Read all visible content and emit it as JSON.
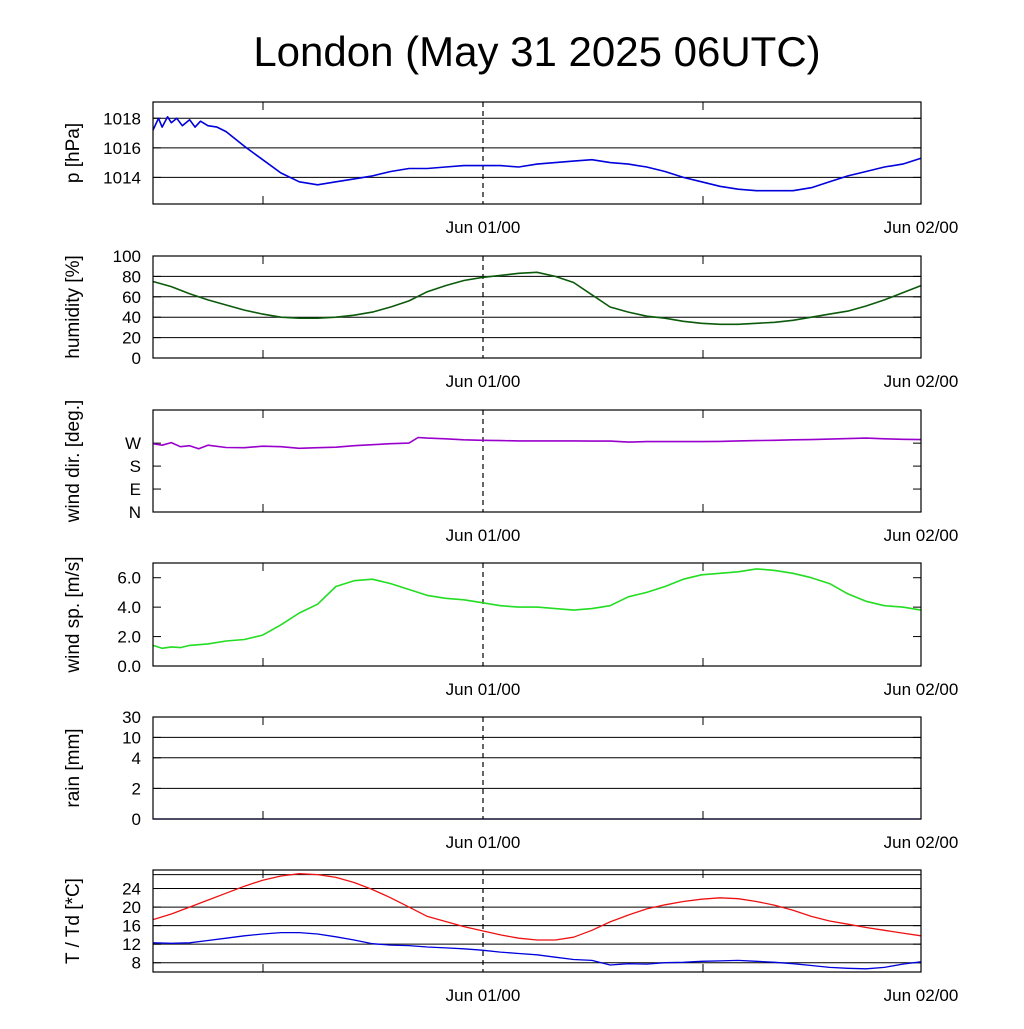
{
  "title": "London (May 31 2025 06UTC)",
  "x_tick_labels": [
    "Jun 01/00",
    "Jun 02/00"
  ],
  "chart_data": [
    {
      "type": "line",
      "ylabel": "p [hPa]",
      "ylim": [
        1012.2,
        1019.1
      ],
      "x_range_hours": [
        0,
        42
      ],
      "yticks": [
        1014,
        1016,
        1018
      ],
      "ytick_labels": [
        "1014",
        "1016",
        "1018"
      ],
      "grid_y": [
        1014,
        1016,
        1018
      ],
      "series": [
        {
          "color": "#0000dd",
          "x": [
            0,
            0.3,
            0.5,
            0.8,
            1,
            1.3,
            1.6,
            2,
            2.3,
            2.6,
            3,
            3.5,
            4,
            5,
            6,
            7,
            8,
            9,
            10,
            11,
            12,
            13,
            14,
            15,
            16,
            17,
            18,
            19,
            20,
            21,
            22,
            23,
            24,
            25,
            26,
            27,
            28,
            29,
            30,
            31,
            32,
            33,
            34,
            35,
            36,
            37,
            38,
            39,
            40,
            41,
            42
          ],
          "y": [
            1017.2,
            1018.0,
            1017.4,
            1018.1,
            1017.7,
            1018.0,
            1017.5,
            1017.9,
            1017.4,
            1017.8,
            1017.5,
            1017.4,
            1017.1,
            1016.1,
            1015.2,
            1014.3,
            1013.7,
            1013.5,
            1013.7,
            1013.9,
            1014.1,
            1014.4,
            1014.6,
            1014.6,
            1014.7,
            1014.8,
            1014.8,
            1014.8,
            1014.7,
            1014.9,
            1015.0,
            1015.1,
            1015.2,
            1015.0,
            1014.9,
            1014.7,
            1014.4,
            1014.0,
            1013.7,
            1013.4,
            1013.2,
            1013.1,
            1013.1,
            1013.1,
            1013.3,
            1013.7,
            1014.1,
            1014.4,
            1014.7,
            1014.9,
            1015.3
          ]
        }
      ]
    },
    {
      "type": "line",
      "ylabel": "humidity [%]",
      "ylim": [
        0,
        100
      ],
      "x_range_hours": [
        0,
        42
      ],
      "yticks": [
        0,
        20,
        40,
        60,
        80,
        100
      ],
      "ytick_labels": [
        "0",
        "20",
        "40",
        "60",
        "80",
        "100"
      ],
      "grid_y": [
        20,
        40,
        60,
        80
      ],
      "series": [
        {
          "color": "#0b5a0b",
          "x": [
            0,
            1,
            2,
            3,
            4,
            5,
            6,
            7,
            8,
            9,
            10,
            11,
            12,
            13,
            14,
            15,
            16,
            17,
            18,
            19,
            20,
            21,
            22,
            23,
            24,
            25,
            26,
            27,
            28,
            29,
            30,
            31,
            32,
            33,
            34,
            35,
            36,
            37,
            38,
            39,
            40,
            41,
            42
          ],
          "y": [
            75,
            70,
            63,
            57,
            52,
            47,
            43,
            40,
            39,
            39,
            40,
            42,
            45,
            50,
            56,
            65,
            71,
            76,
            79,
            81,
            83,
            84,
            80,
            74,
            62,
            50,
            45,
            41,
            39,
            36,
            34,
            33,
            33,
            34,
            35,
            37,
            40,
            43,
            46,
            51,
            57,
            64,
            71
          ]
        }
      ]
    },
    {
      "type": "line",
      "ylabel": "wind dir. [deg.]",
      "ylim": [
        0,
        400
      ],
      "x_range_hours": [
        0,
        42
      ],
      "yticks": [
        0,
        90,
        180,
        270
      ],
      "ytick_labels": [
        "N",
        "E",
        "S",
        "W"
      ],
      "grid_y": [],
      "series": [
        {
          "color": "#9900cc",
          "x": [
            0,
            0.5,
            1,
            1.5,
            2,
            2.5,
            3,
            4,
            5,
            6,
            7,
            8,
            9,
            10,
            11,
            12,
            13,
            14,
            14.5,
            15,
            16,
            17,
            18,
            19,
            20,
            21,
            22,
            23,
            24,
            25,
            26,
            27,
            28,
            29,
            30,
            31,
            32,
            33,
            34,
            35,
            36,
            37,
            38,
            39,
            40,
            41,
            42
          ],
          "y": [
            268,
            262,
            272,
            256,
            260,
            248,
            262,
            253,
            252,
            258,
            256,
            250,
            252,
            254,
            260,
            264,
            268,
            270,
            292,
            290,
            287,
            283,
            281,
            280,
            279,
            279,
            279,
            279,
            278,
            278,
            274,
            276,
            276,
            276,
            276,
            277,
            279,
            280,
            281,
            283,
            284,
            286,
            288,
            290,
            287,
            285,
            284
          ]
        }
      ]
    },
    {
      "type": "line",
      "ylabel": "wind sp. [m/s]",
      "ylim": [
        0,
        7
      ],
      "x_range_hours": [
        0,
        42
      ],
      "yticks": [
        0,
        2,
        4,
        6
      ],
      "ytick_labels": [
        "0.0",
        "2.0",
        "4.0",
        "6.0"
      ],
      "grid_y": [],
      "series": [
        {
          "color": "#22dd22",
          "x": [
            0,
            0.5,
            1,
            1.5,
            2,
            3,
            4,
            5,
            6,
            7,
            8,
            9,
            10,
            11,
            12,
            13,
            14,
            15,
            16,
            17,
            18,
            19,
            20,
            21,
            22,
            23,
            24,
            25,
            26,
            27,
            28,
            29,
            30,
            31,
            32,
            33,
            34,
            35,
            36,
            37,
            38,
            39,
            40,
            41,
            42
          ],
          "y": [
            1.4,
            1.2,
            1.3,
            1.25,
            1.4,
            1.5,
            1.7,
            1.8,
            2.1,
            2.8,
            3.6,
            4.2,
            5.4,
            5.8,
            5.9,
            5.6,
            5.2,
            4.8,
            4.6,
            4.5,
            4.3,
            4.1,
            4.0,
            4.0,
            3.9,
            3.8,
            3.9,
            4.1,
            4.7,
            5.0,
            5.4,
            5.9,
            6.2,
            6.3,
            6.4,
            6.6,
            6.5,
            6.3,
            6.0,
            5.6,
            4.9,
            4.4,
            4.1,
            4.0,
            3.8
          ]
        }
      ]
    },
    {
      "type": "line",
      "ylabel": "rain [mm]",
      "ylim": [
        0,
        31
      ],
      "x_range_hours": [
        0,
        42
      ],
      "yticks": [
        0,
        2,
        4,
        10,
        30
      ],
      "ytick_labels": [
        "0",
        "2",
        "4",
        "10",
        "30"
      ],
      "grid_y": [
        2,
        4,
        10,
        30
      ],
      "series": [
        {
          "color": "#0000dd",
          "x": [
            0,
            42
          ],
          "y": [
            0,
            0
          ]
        }
      ]
    },
    {
      "type": "line",
      "ylabel": "T / Td [*C]",
      "ylim": [
        6,
        28
      ],
      "x_range_hours": [
        0,
        42
      ],
      "yticks": [
        8,
        12,
        16,
        20,
        24
      ],
      "ytick_labels": [
        "8",
        "12",
        "16",
        "20",
        "24"
      ],
      "grid_y": [
        8,
        12,
        16,
        20,
        24,
        27
      ],
      "series": [
        {
          "color": "#ee1111",
          "x": [
            0,
            1,
            2,
            3,
            4,
            5,
            6,
            7,
            8,
            9,
            10,
            11,
            12,
            13,
            14,
            15,
            16,
            17,
            18,
            19,
            20,
            21,
            22,
            23,
            24,
            25,
            26,
            27,
            28,
            29,
            30,
            31,
            32,
            33,
            34,
            35,
            36,
            37,
            38,
            39,
            40,
            41,
            42
          ],
          "y": [
            17.3,
            18.5,
            20.0,
            21.5,
            23.0,
            24.5,
            25.8,
            26.7,
            27.2,
            27.0,
            26.4,
            25.3,
            23.8,
            22.0,
            20.0,
            18.0,
            16.9,
            15.8,
            14.9,
            14.0,
            13.3,
            12.9,
            12.9,
            13.5,
            15.0,
            16.8,
            18.3,
            19.6,
            20.5,
            21.2,
            21.7,
            22.0,
            21.8,
            21.2,
            20.4,
            19.3,
            18.0,
            17.0,
            16.3,
            15.6,
            15.0,
            14.4,
            13.8
          ]
        },
        {
          "color": "#0000dd",
          "x": [
            0,
            1,
            2,
            3,
            4,
            5,
            6,
            7,
            8,
            9,
            10,
            11,
            12,
            13,
            14,
            15,
            16,
            17,
            18,
            19,
            20,
            21,
            22,
            23,
            24,
            25,
            26,
            27,
            28,
            29,
            30,
            31,
            32,
            33,
            34,
            35,
            36,
            37,
            38,
            39,
            40,
            41,
            42
          ],
          "y": [
            12.3,
            12.2,
            12.3,
            12.8,
            13.3,
            13.8,
            14.2,
            14.5,
            14.5,
            14.2,
            13.6,
            12.9,
            12.1,
            11.8,
            11.7,
            11.4,
            11.2,
            11.0,
            10.7,
            10.3,
            10.0,
            9.7,
            9.2,
            8.7,
            8.5,
            7.5,
            7.8,
            7.7,
            8.0,
            8.1,
            8.3,
            8.4,
            8.5,
            8.3,
            8.1,
            7.8,
            7.4,
            7.0,
            6.8,
            6.7,
            7.0,
            7.7,
            8.2
          ]
        }
      ]
    }
  ]
}
